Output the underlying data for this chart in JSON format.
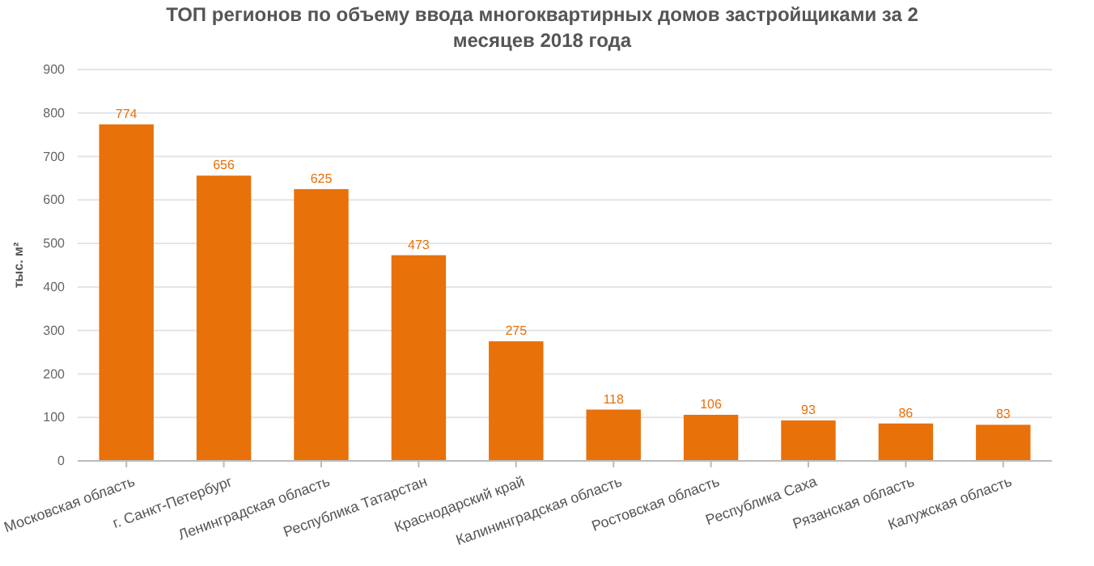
{
  "chart_data": {
    "type": "bar",
    "title": "ТОП регионов по объему ввода многоквартирных домов застройщиками за 2 месяцев 2018 года",
    "ylabel": "тыс. м²",
    "categories": [
      "Московская область",
      "г. Санкт-Петербург",
      "Ленинградская область",
      "Республика Татарстан",
      "Краснодарский край",
      "Калининградская область",
      "Ростовская область",
      "Республика Саха",
      "Рязанская область",
      "Калужская область"
    ],
    "values": [
      774,
      656,
      625,
      473,
      275,
      118,
      106,
      93,
      86,
      83
    ],
    "color": "#e8710a",
    "ylim": [
      0,
      900
    ],
    "yticks": [
      0,
      100,
      200,
      300,
      400,
      500,
      600,
      700,
      800,
      900
    ],
    "grid": "y",
    "data_labels": true
  }
}
